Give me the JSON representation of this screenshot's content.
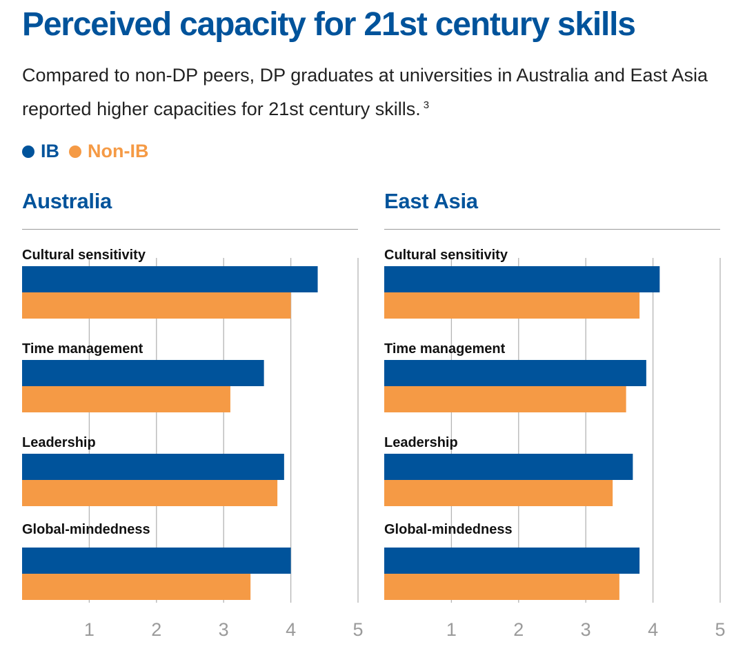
{
  "title": "Perceived capacity for 21st century skills",
  "subtitle": "Compared to non-DP peers, DP graduates at universities in Australia and East Asia reported higher capacities for 21st century skills.",
  "subtitle_footnote": "3",
  "legend": [
    {
      "label": "IB",
      "color": "#00539b"
    },
    {
      "label": "Non-IB",
      "color": "#f59a45"
    }
  ],
  "colors": {
    "title": "#00539b",
    "gridline": "#b4b4b4",
    "tick_label": "#9a9a9a"
  },
  "chart_data": [
    {
      "type": "bar",
      "orientation": "horizontal",
      "title": "Australia",
      "categories": [
        "Cultural sensitivity",
        "Time management",
        "Leadership",
        "Global-mindedness"
      ],
      "series": [
        {
          "name": "IB",
          "values": [
            4.4,
            3.6,
            3.9,
            4.0
          ]
        },
        {
          "name": "Non-IB",
          "values": [
            4.0,
            3.1,
            3.8,
            3.4
          ]
        }
      ],
      "xlim": [
        0,
        5
      ],
      "xticks": [
        1,
        2,
        3,
        4,
        5
      ],
      "grid": true
    },
    {
      "type": "bar",
      "orientation": "horizontal",
      "title": "East Asia",
      "categories": [
        "Cultural sensitivity",
        "Time management",
        "Leadership",
        "Global-mindedness"
      ],
      "series": [
        {
          "name": "IB",
          "values": [
            4.1,
            3.9,
            3.7,
            3.8
          ]
        },
        {
          "name": "Non-IB",
          "values": [
            3.8,
            3.6,
            3.4,
            3.5
          ]
        }
      ],
      "xlim": [
        0,
        5
      ],
      "xticks": [
        1,
        2,
        3,
        4,
        5
      ],
      "grid": true
    }
  ]
}
